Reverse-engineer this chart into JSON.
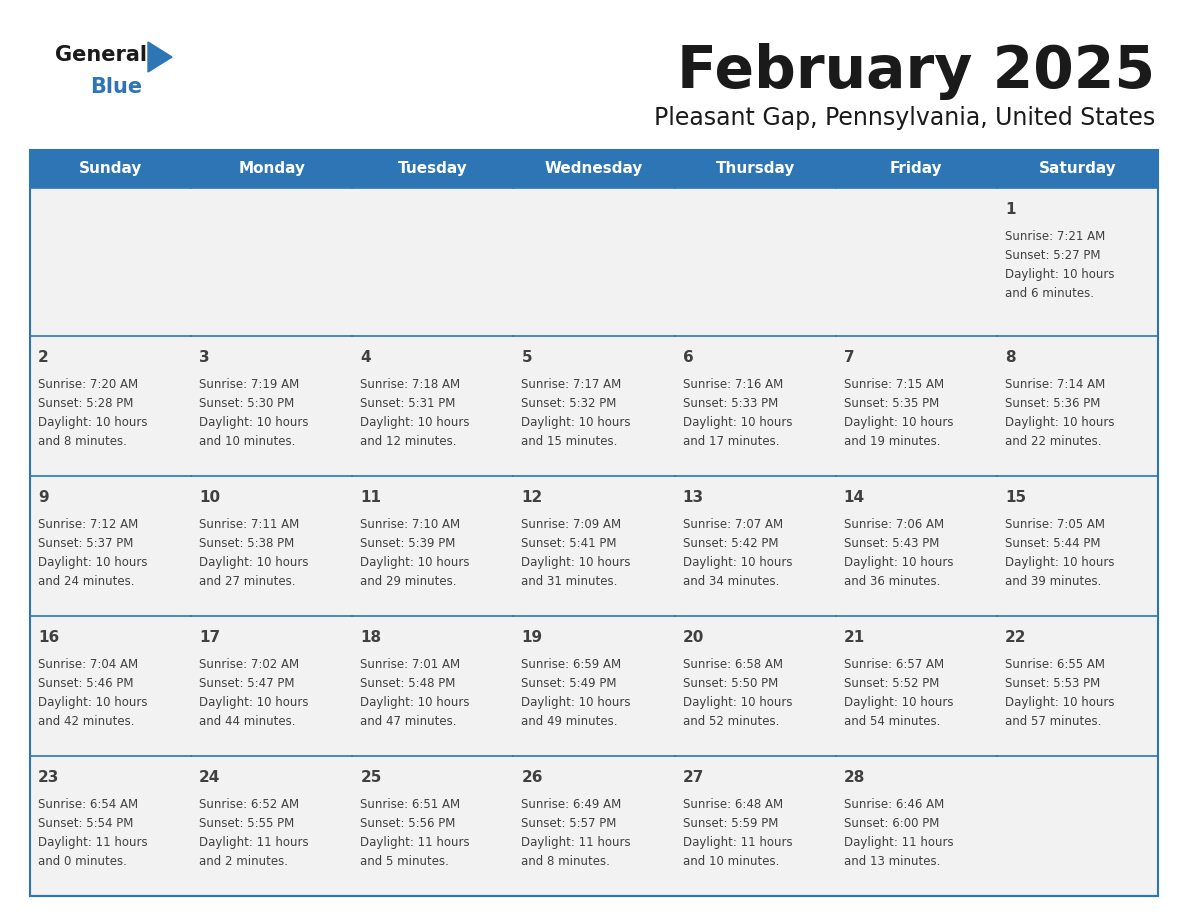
{
  "title": "February 2025",
  "subtitle": "Pleasant Gap, Pennsylvania, United States",
  "days_of_week": [
    "Sunday",
    "Monday",
    "Tuesday",
    "Wednesday",
    "Thursday",
    "Friday",
    "Saturday"
  ],
  "header_bg": "#2E75B6",
  "header_text": "#FFFFFF",
  "cell_bg": "#F2F2F2",
  "border_color": "#2E75B6",
  "text_color": "#404040",
  "title_color": "#1A1A1A",
  "logo_general_color": "#1A1A1A",
  "logo_blue_color": "#2E75B6",
  "logo_triangle_color": "#2E75B6",
  "calendar_data": [
    [
      null,
      null,
      null,
      null,
      null,
      null,
      {
        "day": 1,
        "sunrise": "7:21 AM",
        "sunset": "5:27 PM",
        "hours": 10,
        "minutes": 6
      }
    ],
    [
      {
        "day": 2,
        "sunrise": "7:20 AM",
        "sunset": "5:28 PM",
        "hours": 10,
        "minutes": 8
      },
      {
        "day": 3,
        "sunrise": "7:19 AM",
        "sunset": "5:30 PM",
        "hours": 10,
        "minutes": 10
      },
      {
        "day": 4,
        "sunrise": "7:18 AM",
        "sunset": "5:31 PM",
        "hours": 10,
        "minutes": 12
      },
      {
        "day": 5,
        "sunrise": "7:17 AM",
        "sunset": "5:32 PM",
        "hours": 10,
        "minutes": 15
      },
      {
        "day": 6,
        "sunrise": "7:16 AM",
        "sunset": "5:33 PM",
        "hours": 10,
        "minutes": 17
      },
      {
        "day": 7,
        "sunrise": "7:15 AM",
        "sunset": "5:35 PM",
        "hours": 10,
        "minutes": 19
      },
      {
        "day": 8,
        "sunrise": "7:14 AM",
        "sunset": "5:36 PM",
        "hours": 10,
        "minutes": 22
      }
    ],
    [
      {
        "day": 9,
        "sunrise": "7:12 AM",
        "sunset": "5:37 PM",
        "hours": 10,
        "minutes": 24
      },
      {
        "day": 10,
        "sunrise": "7:11 AM",
        "sunset": "5:38 PM",
        "hours": 10,
        "minutes": 27
      },
      {
        "day": 11,
        "sunrise": "7:10 AM",
        "sunset": "5:39 PM",
        "hours": 10,
        "minutes": 29
      },
      {
        "day": 12,
        "sunrise": "7:09 AM",
        "sunset": "5:41 PM",
        "hours": 10,
        "minutes": 31
      },
      {
        "day": 13,
        "sunrise": "7:07 AM",
        "sunset": "5:42 PM",
        "hours": 10,
        "minutes": 34
      },
      {
        "day": 14,
        "sunrise": "7:06 AM",
        "sunset": "5:43 PM",
        "hours": 10,
        "minutes": 36
      },
      {
        "day": 15,
        "sunrise": "7:05 AM",
        "sunset": "5:44 PM",
        "hours": 10,
        "minutes": 39
      }
    ],
    [
      {
        "day": 16,
        "sunrise": "7:04 AM",
        "sunset": "5:46 PM",
        "hours": 10,
        "minutes": 42
      },
      {
        "day": 17,
        "sunrise": "7:02 AM",
        "sunset": "5:47 PM",
        "hours": 10,
        "minutes": 44
      },
      {
        "day": 18,
        "sunrise": "7:01 AM",
        "sunset": "5:48 PM",
        "hours": 10,
        "minutes": 47
      },
      {
        "day": 19,
        "sunrise": "6:59 AM",
        "sunset": "5:49 PM",
        "hours": 10,
        "minutes": 49
      },
      {
        "day": 20,
        "sunrise": "6:58 AM",
        "sunset": "5:50 PM",
        "hours": 10,
        "minutes": 52
      },
      {
        "day": 21,
        "sunrise": "6:57 AM",
        "sunset": "5:52 PM",
        "hours": 10,
        "minutes": 54
      },
      {
        "day": 22,
        "sunrise": "6:55 AM",
        "sunset": "5:53 PM",
        "hours": 10,
        "minutes": 57
      }
    ],
    [
      {
        "day": 23,
        "sunrise": "6:54 AM",
        "sunset": "5:54 PM",
        "hours": 11,
        "minutes": 0
      },
      {
        "day": 24,
        "sunrise": "6:52 AM",
        "sunset": "5:55 PM",
        "hours": 11,
        "minutes": 2
      },
      {
        "day": 25,
        "sunrise": "6:51 AM",
        "sunset": "5:56 PM",
        "hours": 11,
        "minutes": 5
      },
      {
        "day": 26,
        "sunrise": "6:49 AM",
        "sunset": "5:57 PM",
        "hours": 11,
        "minutes": 8
      },
      {
        "day": 27,
        "sunrise": "6:48 AM",
        "sunset": "5:59 PM",
        "hours": 11,
        "minutes": 10
      },
      {
        "day": 28,
        "sunrise": "6:46 AM",
        "sunset": "6:00 PM",
        "hours": 11,
        "minutes": 13
      },
      null
    ]
  ]
}
